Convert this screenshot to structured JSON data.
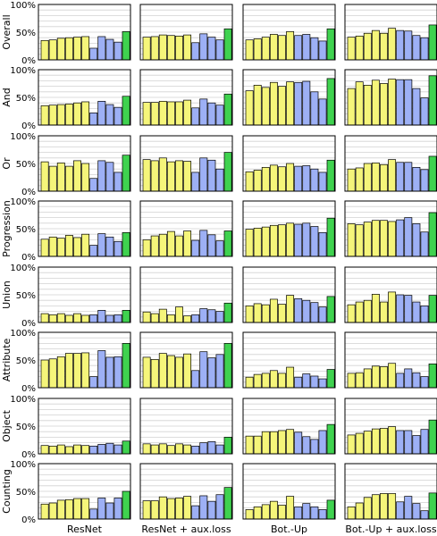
{
  "chart_data": {
    "type": "bar",
    "groups": [
      "ResNet",
      "ResNet + aux.loss",
      "Bot.-Up",
      "Bot.-Up + aux.loss"
    ],
    "y_ticks": [
      "0%",
      "50%",
      "100%"
    ],
    "ylim": [
      0,
      100
    ],
    "grid": true,
    "colors": [
      "#f5f57a",
      "#f5f57a",
      "#f5f57a",
      "#f5f57a",
      "#f5f57a",
      "#f5f57a",
      "#9db0f5",
      "#9db0f5",
      "#9db0f5",
      "#9db0f5",
      "#3fd24f"
    ],
    "panels": [
      {
        "ylabel": "Overall",
        "values": [
          [
            35,
            36,
            39,
            40,
            41,
            42,
            21,
            42,
            37,
            32,
            51
          ],
          [
            41,
            42,
            45,
            44,
            43,
            45,
            31,
            47,
            41,
            36,
            56
          ],
          [
            36,
            38,
            41,
            46,
            44,
            51,
            44,
            46,
            40,
            34,
            56
          ],
          [
            41,
            43,
            48,
            53,
            48,
            57,
            53,
            52,
            44,
            40,
            63
          ]
        ]
      },
      {
        "ylabel": "And",
        "values": [
          [
            35,
            36,
            37,
            38,
            40,
            42,
            22,
            43,
            37,
            32,
            52
          ],
          [
            41,
            41,
            43,
            42,
            42,
            45,
            31,
            47,
            40,
            36,
            56
          ],
          [
            62,
            72,
            68,
            77,
            70,
            78,
            77,
            79,
            60,
            47,
            84
          ],
          [
            66,
            78,
            72,
            81,
            75,
            83,
            82,
            82,
            66,
            49,
            89
          ]
        ]
      },
      {
        "ylabel": "Or",
        "values": [
          [
            53,
            45,
            51,
            45,
            55,
            50,
            23,
            55,
            52,
            34,
            65
          ],
          [
            57,
            55,
            60,
            53,
            55,
            54,
            34,
            60,
            56,
            40,
            70
          ],
          [
            35,
            38,
            43,
            47,
            44,
            50,
            45,
            46,
            40,
            34,
            56
          ],
          [
            40,
            42,
            50,
            51,
            48,
            57,
            52,
            52,
            43,
            39,
            63
          ]
        ]
      },
      {
        "ylabel": "Progression",
        "values": [
          [
            31,
            35,
            33,
            38,
            34,
            40,
            20,
            41,
            35,
            27,
            43
          ],
          [
            30,
            37,
            40,
            45,
            37,
            46,
            29,
            47,
            39,
            28,
            46
          ],
          [
            49,
            51,
            53,
            56,
            57,
            60,
            58,
            60,
            54,
            43,
            69
          ],
          [
            59,
            57,
            62,
            65,
            65,
            63,
            66,
            70,
            59,
            44,
            79
          ]
        ]
      },
      {
        "ylabel": "Union",
        "values": [
          [
            16,
            14,
            16,
            13,
            16,
            13,
            14,
            22,
            13,
            14,
            22
          ],
          [
            19,
            16,
            24,
            14,
            28,
            12,
            14,
            25,
            23,
            20,
            35
          ],
          [
            30,
            34,
            32,
            42,
            33,
            49,
            43,
            40,
            36,
            28,
            47
          ],
          [
            32,
            37,
            40,
            51,
            37,
            55,
            50,
            49,
            37,
            30,
            49
          ]
        ]
      },
      {
        "ylabel": "Attribute",
        "values": [
          [
            50,
            52,
            56,
            62,
            62,
            63,
            20,
            67,
            55,
            56,
            80
          ],
          [
            55,
            51,
            62,
            58,
            55,
            61,
            31,
            65,
            54,
            60,
            80
          ],
          [
            19,
            24,
            26,
            31,
            26,
            37,
            19,
            25,
            21,
            16,
            33
          ],
          [
            26,
            27,
            34,
            39,
            38,
            44,
            26,
            34,
            27,
            20,
            43
          ]
        ]
      },
      {
        "ylabel": "Object",
        "values": [
          [
            15,
            14,
            16,
            13,
            16,
            15,
            14,
            17,
            19,
            16,
            23
          ],
          [
            18,
            16,
            18,
            15,
            18,
            16,
            14,
            20,
            22,
            16,
            30
          ],
          [
            32,
            32,
            40,
            40,
            42,
            44,
            39,
            31,
            26,
            42,
            53
          ],
          [
            34,
            37,
            41,
            45,
            46,
            49,
            42,
            42,
            33,
            44,
            61
          ]
        ]
      },
      {
        "ylabel": "Counting",
        "values": [
          [
            27,
            29,
            34,
            35,
            37,
            37,
            18,
            38,
            29,
            38,
            50
          ],
          [
            33,
            33,
            40,
            37,
            38,
            41,
            24,
            42,
            32,
            44,
            57
          ],
          [
            17,
            22,
            26,
            32,
            25,
            41,
            22,
            28,
            22,
            17,
            34
          ],
          [
            22,
            29,
            39,
            44,
            46,
            46,
            31,
            41,
            28,
            15,
            47
          ]
        ]
      }
    ]
  }
}
